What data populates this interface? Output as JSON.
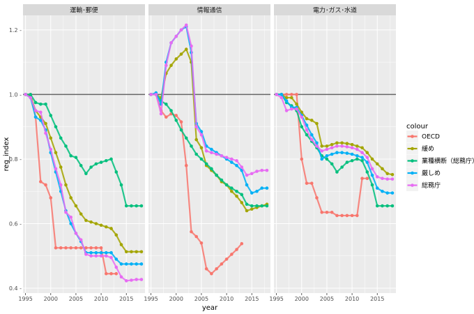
{
  "chart_data": {
    "type": "line",
    "xlabel": "year",
    "ylabel": "reg_index",
    "xlim": [
      1994.5,
      2018.7
    ],
    "ylim": [
      0.385,
      1.245
    ],
    "x_ticks": [
      1995,
      2000,
      2005,
      2010,
      2015
    ],
    "x_tick_labels": [
      "1995",
      "2000",
      "2005",
      "2010",
      "2015"
    ],
    "y_ticks": [
      0.4,
      0.6,
      0.8,
      1.0,
      1.2
    ],
    "y_tick_labels": [
      "0.4 -",
      "0.6 -",
      "0.8 -",
      "1.0 -",
      "1.2 -"
    ],
    "reference_line": 1.0,
    "grid": true,
    "legend": {
      "title": "colour",
      "position": "right",
      "entries": [
        "OECD",
        "緩め",
        "業種横断（総務庁）",
        "厳しめ",
        "総務庁"
      ]
    },
    "colors": {
      "OECD": "#F8766D",
      "緩め": "#A3A500",
      "業種横断（総務庁）": "#00BF7D",
      "厳しめ": "#00B0F6",
      "総務庁": "#E76BF3"
    },
    "panels": [
      {
        "title": "運輸･郵便",
        "series": [
          {
            "name": "OECD",
            "x": [
              1995,
              1996,
              1997,
              1998,
              1999,
              2000,
              2001,
              2002,
              2003,
              2004,
              2005,
              2006,
              2007,
              2008,
              2009,
              2010,
              2011,
              2012,
              2013
            ],
            "y": [
              1.0,
              1.0,
              0.93,
              0.73,
              0.72,
              0.68,
              0.525,
              0.525,
              0.525,
              0.525,
              0.525,
              0.525,
              0.525,
              0.525,
              0.525,
              0.525,
              0.445,
              0.445,
              0.445
            ]
          },
          {
            "name": "緩め",
            "x": [
              1995,
              1996,
              1997,
              1998,
              1999,
              2000,
              2001,
              2002,
              2003,
              2004,
              2005,
              2006,
              2007,
              2008,
              2009,
              2010,
              2011,
              2012,
              2013,
              2014,
              2015,
              2016,
              2017,
              2018
            ],
            "y": [
              1.0,
              0.995,
              0.95,
              0.93,
              0.91,
              0.865,
              0.82,
              0.775,
              0.72,
              0.68,
              0.655,
              0.63,
              0.61,
              0.605,
              0.6,
              0.595,
              0.59,
              0.585,
              0.565,
              0.535,
              0.513,
              0.513,
              0.513,
              0.513
            ]
          },
          {
            "name": "業種横断（総務庁）",
            "x": [
              1995,
              1996,
              1997,
              1998,
              1999,
              2000,
              2001,
              2002,
              2003,
              2004,
              2005,
              2006,
              2007,
              2008,
              2009,
              2010,
              2011,
              2012,
              2013,
              2014,
              2015,
              2016,
              2017,
              2018
            ],
            "y": [
              1.0,
              1.0,
              0.975,
              0.97,
              0.97,
              0.935,
              0.9,
              0.865,
              0.84,
              0.81,
              0.805,
              0.78,
              0.755,
              0.775,
              0.785,
              0.79,
              0.795,
              0.8,
              0.76,
              0.72,
              0.655,
              0.655,
              0.655,
              0.655
            ]
          },
          {
            "name": "厳しめ",
            "x": [
              1995,
              1996,
              1997,
              1998,
              1999,
              2000,
              2001,
              2002,
              2003,
              2004,
              2005,
              2006,
              2007,
              2008,
              2009,
              2010,
              2011,
              2012,
              2013,
              2014,
              2015,
              2016,
              2017,
              2018
            ],
            "y": [
              1.0,
              0.99,
              0.93,
              0.92,
              0.89,
              0.82,
              0.76,
              0.7,
              0.64,
              0.6,
              0.57,
              0.545,
              0.51,
              0.51,
              0.51,
              0.51,
              0.51,
              0.51,
              0.49,
              0.475,
              0.475,
              0.475,
              0.475,
              0.475
            ]
          },
          {
            "name": "総務庁",
            "x": [
              1995,
              1996,
              1997,
              1998,
              1999,
              2000,
              2001,
              2002,
              2003,
              2004,
              2005,
              2006,
              2007,
              2008,
              2009,
              2010,
              2011,
              2012,
              2013,
              2014,
              2015,
              2016,
              2017,
              2018
            ],
            "y": [
              1.0,
              0.99,
              0.95,
              0.945,
              0.88,
              0.83,
              0.77,
              0.72,
              0.635,
              0.62,
              0.57,
              0.55,
              0.505,
              0.5,
              0.5,
              0.5,
              0.5,
              0.495,
              0.465,
              0.435,
              0.423,
              0.425,
              0.427,
              0.427
            ]
          }
        ]
      },
      {
        "title": "情報通信",
        "series": [
          {
            "name": "OECD",
            "x": [
              1995,
              1996,
              1997,
              1998,
              1999,
              2000,
              2001,
              2002,
              2003,
              2004,
              2005,
              2006,
              2007,
              2008,
              2009,
              2010,
              2011,
              2012,
              2013
            ],
            "y": [
              1.0,
              1.0,
              0.95,
              0.93,
              0.94,
              0.935,
              0.915,
              0.78,
              0.575,
              0.56,
              0.54,
              0.46,
              0.445,
              0.46,
              0.475,
              0.49,
              0.505,
              0.52,
              0.538
            ]
          },
          {
            "name": "緩め",
            "x": [
              1995,
              1996,
              1997,
              1998,
              1999,
              2000,
              2001,
              2002,
              2003,
              2004,
              2005,
              2006,
              2007,
              2008,
              2009,
              2010,
              2011,
              2012,
              2013,
              2014,
              2015,
              2016,
              2017,
              2018
            ],
            "y": [
              1.0,
              1.0,
              0.99,
              1.065,
              1.09,
              1.11,
              1.125,
              1.14,
              1.1,
              0.86,
              0.835,
              0.78,
              0.765,
              0.75,
              0.73,
              0.72,
              0.7,
              0.685,
              0.665,
              0.64,
              0.645,
              0.65,
              0.655,
              0.66
            ]
          },
          {
            "name": "業種横断（総務庁）",
            "x": [
              1995,
              1996,
              1997,
              1998,
              1999,
              2000,
              2001,
              2002,
              2003,
              2004,
              2005,
              2006,
              2007,
              2008,
              2009,
              2010,
              2011,
              2012,
              2013,
              2014,
              2015,
              2016,
              2017,
              2018
            ],
            "y": [
              1.0,
              1.0,
              0.98,
              0.97,
              0.95,
              0.92,
              0.89,
              0.865,
              0.84,
              0.815,
              0.8,
              0.785,
              0.77,
              0.75,
              0.735,
              0.72,
              0.71,
              0.7,
              0.69,
              0.66,
              0.655,
              0.655,
              0.655,
              0.655
            ]
          },
          {
            "name": "厳しめ",
            "x": [
              1995,
              1996,
              1997,
              1998,
              1999,
              2000,
              2001,
              2002,
              2003,
              2004,
              2005,
              2006,
              2007,
              2008,
              2009,
              2010,
              2011,
              2012,
              2013,
              2014,
              2015,
              2016,
              2017,
              2018
            ],
            "y": [
              1.0,
              1.005,
              0.97,
              1.1,
              1.16,
              1.18,
              1.2,
              1.21,
              1.13,
              0.91,
              0.885,
              0.84,
              0.83,
              0.82,
              0.81,
              0.8,
              0.79,
              0.78,
              0.765,
              0.72,
              0.695,
              0.7,
              0.71,
              0.71
            ]
          },
          {
            "name": "総務庁",
            "x": [
              1995,
              1996,
              1997,
              1998,
              1999,
              2000,
              2001,
              2002,
              2003,
              2004,
              2005,
              2006,
              2007,
              2008,
              2009,
              2010,
              2011,
              2012,
              2013,
              2014,
              2015,
              2016,
              2017,
              2018
            ],
            "y": [
              1.0,
              1.0,
              0.94,
              1.09,
              1.16,
              1.18,
              1.2,
              1.215,
              1.15,
              0.9,
              0.875,
              0.825,
              0.82,
              0.815,
              0.81,
              0.805,
              0.8,
              0.795,
              0.775,
              0.75,
              0.755,
              0.762,
              0.765,
              0.765
            ]
          }
        ]
      },
      {
        "title": "電力･ガス･水道",
        "series": [
          {
            "name": "OECD",
            "x": [
              1995,
              1996,
              1997,
              1998,
              1999,
              2000,
              2001,
              2002,
              2003,
              2004,
              2005,
              2006,
              2007,
              2008,
              2009,
              2010,
              2011,
              2012,
              2013
            ],
            "y": [
              1.0,
              1.0,
              1.0,
              1.0,
              1.0,
              0.8,
              0.725,
              0.725,
              0.68,
              0.635,
              0.635,
              0.635,
              0.625,
              0.625,
              0.625,
              0.625,
              0.625,
              0.74,
              0.74
            ]
          },
          {
            "name": "緩め",
            "x": [
              1995,
              1996,
              1997,
              1998,
              1999,
              2000,
              2001,
              2002,
              2003,
              2004,
              2005,
              2006,
              2007,
              2008,
              2009,
              2010,
              2011,
              2012,
              2013,
              2014,
              2015,
              2016,
              2017,
              2018
            ],
            "y": [
              1.0,
              1.0,
              0.99,
              0.99,
              0.97,
              0.945,
              0.925,
              0.92,
              0.91,
              0.84,
              0.84,
              0.845,
              0.85,
              0.85,
              0.848,
              0.845,
              0.84,
              0.835,
              0.82,
              0.8,
              0.785,
              0.77,
              0.755,
              0.752
            ]
          },
          {
            "name": "業種横断（総務庁）",
            "x": [
              1995,
              1996,
              1997,
              1998,
              1999,
              2000,
              2001,
              2002,
              2003,
              2004,
              2005,
              2006,
              2007,
              2008,
              2009,
              2010,
              2011,
              2012,
              2013,
              2014,
              2015,
              2016,
              2017,
              2018
            ],
            "y": [
              1.0,
              1.0,
              0.975,
              0.965,
              0.95,
              0.9,
              0.875,
              0.855,
              0.835,
              0.81,
              0.8,
              0.785,
              0.76,
              0.775,
              0.79,
              0.795,
              0.8,
              0.795,
              0.76,
              0.72,
              0.655,
              0.655,
              0.655,
              0.655
            ]
          },
          {
            "name": "厳しめ",
            "x": [
              1995,
              1996,
              1997,
              1998,
              1999,
              2000,
              2001,
              2002,
              2003,
              2004,
              2005,
              2006,
              2007,
              2008,
              2009,
              2010,
              2011,
              2012,
              2013,
              2014,
              2015,
              2016,
              2017,
              2018
            ],
            "y": [
              1.0,
              1.0,
              0.98,
              0.96,
              0.96,
              0.935,
              0.905,
              0.875,
              0.85,
              0.8,
              0.81,
              0.815,
              0.82,
              0.82,
              0.818,
              0.815,
              0.81,
              0.805,
              0.79,
              0.75,
              0.71,
              0.7,
              0.695,
              0.695
            ]
          },
          {
            "name": "総務庁",
            "x": [
              1995,
              1996,
              1997,
              1998,
              1999,
              2000,
              2001,
              2002,
              2003,
              2004,
              2005,
              2006,
              2007,
              2008,
              2009,
              2010,
              2011,
              2012,
              2013,
              2014,
              2015,
              2016,
              2017,
              2018
            ],
            "y": [
              1.0,
              0.99,
              0.95,
              0.955,
              0.955,
              0.93,
              0.89,
              0.86,
              0.84,
              0.825,
              0.83,
              0.835,
              0.84,
              0.84,
              0.838,
              0.835,
              0.83,
              0.82,
              0.805,
              0.77,
              0.745,
              0.74,
              0.738,
              0.738
            ]
          }
        ]
      }
    ]
  }
}
